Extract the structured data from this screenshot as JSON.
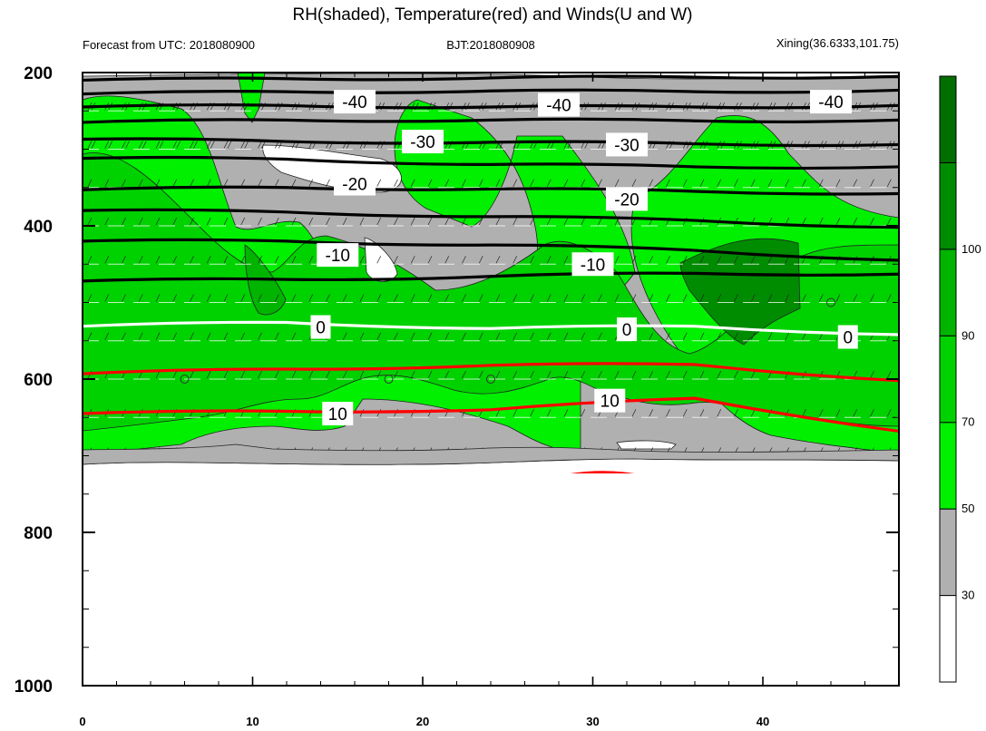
{
  "chart_data": {
    "type": "heatmap",
    "title": "RH(shaded), Temperature(red) and Winds(U and W)",
    "subtitle_left": "Forecast from UTC: 2018080900",
    "subtitle_center": "BJT:2018080908",
    "subtitle_right": "Xining(36.6333,101.75)",
    "x_ticks": [
      "0",
      "10",
      "20",
      "30",
      "40"
    ],
    "x_range": [
      0,
      48
    ],
    "y_ticks": [
      "200",
      "400",
      "600",
      "800",
      "1000"
    ],
    "y_range": [
      200,
      1000
    ],
    "y_reversed": true,
    "colorbar": {
      "labels": [
        "30",
        "50",
        "70",
        "90",
        "100"
      ],
      "colors": [
        "#ffffff",
        "#b0b0b0",
        "#00f000",
        "#00d200",
        "#00b400",
        "#008c00",
        "#006e00"
      ]
    },
    "temperature_contours": [
      {
        "label": "-40",
        "color": "#000000",
        "y": [
          210,
          208,
          207,
          206,
          205
        ]
      },
      {
        "label": "-40",
        "color": "#000000",
        "y": [
          228,
          225,
          224,
          225,
          223
        ]
      },
      {
        "label": "-40",
        "color": "#000000",
        "y": [
          245,
          243,
          245,
          245,
          243
        ]
      },
      {
        "label": "-30",
        "color": "#000000",
        "y": [
          265,
          262,
          262,
          263,
          262
        ]
      },
      {
        "label": "-30",
        "color": "#000000",
        "y": [
          287,
          290,
          291,
          293,
          294
        ]
      },
      {
        "label": "-20",
        "color": "#000000",
        "y": [
          312,
          313,
          320,
          323,
          323
        ]
      },
      {
        "label": "-20",
        "color": "#000000",
        "y": [
          353,
          350,
          352,
          355,
          358
        ]
      },
      {
        "label": "-10",
        "color": "#000000",
        "y": [
          380,
          382,
          388,
          393,
          402
        ]
      },
      {
        "label": "-10",
        "color": "#000000",
        "y": [
          420,
          420,
          425,
          432,
          445
        ]
      },
      {
        "label": "-10",
        "color": "#000000",
        "y": [
          472,
          470,
          466,
          462,
          463
        ]
      },
      {
        "label": "0",
        "color": "#ffffff",
        "y": [
          531,
          526,
          534,
          531,
          542
        ]
      },
      {
        "label": "10",
        "color": "#ff0000",
        "y": [
          593,
          587,
          582,
          581,
          602
        ]
      },
      {
        "label": "10",
        "color": "#ff0000",
        "y": [
          645,
          642,
          640,
          625,
          668
        ]
      }
    ],
    "temperature_labels": [
      {
        "text": "-40",
        "x": 16,
        "y": 238
      },
      {
        "text": "-40",
        "x": 28,
        "y": 242
      },
      {
        "text": "-40",
        "x": 44,
        "y": 238
      },
      {
        "text": "-30",
        "x": 20,
        "y": 290
      },
      {
        "text": "-30",
        "x": 32,
        "y": 294
      },
      {
        "text": "-20",
        "x": 16,
        "y": 345
      },
      {
        "text": "-20",
        "x": 32,
        "y": 365
      },
      {
        "text": "-10",
        "x": 15,
        "y": 438
      },
      {
        "text": "-10",
        "x": 30,
        "y": 450
      },
      {
        "text": "0",
        "x": 14,
        "y": 532
      },
      {
        "text": "0",
        "x": 32,
        "y": 535
      },
      {
        "text": "0",
        "x": 45,
        "y": 545
      },
      {
        "text": "10",
        "x": 15,
        "y": 645
      },
      {
        "text": "10",
        "x": 31,
        "y": 628
      }
    ]
  }
}
